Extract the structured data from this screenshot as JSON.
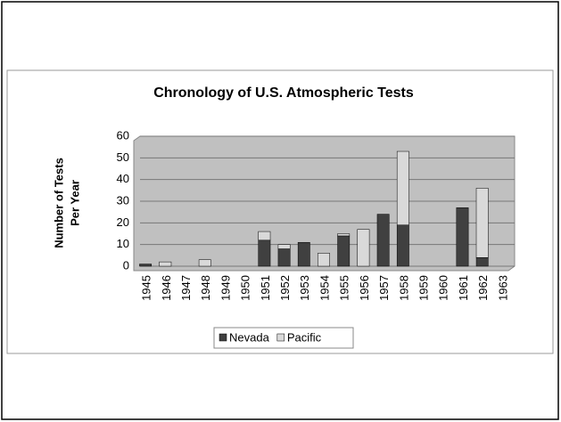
{
  "chart_data": {
    "type": "bar",
    "stacked": true,
    "title": "Chronology of U.S. Atmospheric Tests",
    "y_label": [
      "Number of Tests",
      "Per Year"
    ],
    "categories": [
      "1945",
      "1946",
      "1947",
      "1948",
      "1949",
      "1950",
      "1951",
      "1952",
      "1953",
      "1954",
      "1955",
      "1956",
      "1957",
      "1958",
      "1959",
      "1960",
      "1961",
      "1962",
      "1963"
    ],
    "series": [
      {
        "name": "Nevada",
        "color": "#404040",
        "values": [
          1,
          0,
          0,
          0,
          0,
          0,
          12,
          8,
          11,
          0,
          14,
          0,
          24,
          19,
          0,
          0,
          27,
          4,
          0
        ]
      },
      {
        "name": "Pacific",
        "color": "#d9d9d9",
        "values": [
          0,
          2,
          0,
          3,
          0,
          0,
          4,
          2,
          0,
          6,
          1,
          17,
          0,
          34,
          0,
          0,
          0,
          32,
          0
        ]
      }
    ],
    "ylim": [
      0,
      60
    ],
    "yticks": [
      0,
      10,
      20,
      30,
      40,
      50,
      60
    ],
    "grid": true,
    "legend": "bottom"
  }
}
